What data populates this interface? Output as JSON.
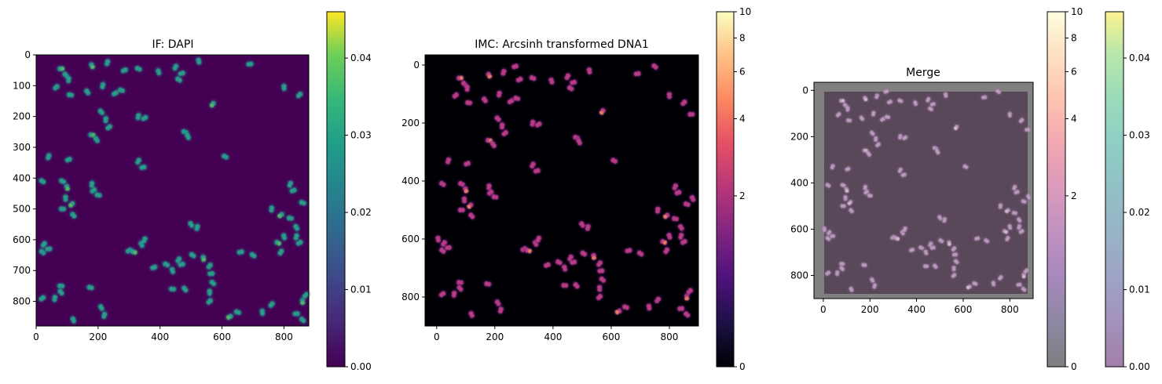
{
  "chart_data": [
    {
      "type": "heatmap",
      "title": "IF: DAPI",
      "colormap": "viridis",
      "xlim": [
        0,
        880
      ],
      "ylim": [
        880,
        0
      ],
      "xticks": [
        0,
        200,
        400,
        600,
        800
      ],
      "yticks": [
        0,
        100,
        200,
        300,
        400,
        500,
        600,
        700,
        800
      ],
      "colorbar": {
        "range": [
          0,
          0.046
        ],
        "ticks": [
          "0.00",
          "0.01",
          "0.02",
          "0.03",
          "0.04"
        ],
        "tick_values": [
          0,
          0.01,
          0.02,
          0.03,
          0.04
        ]
      },
      "background_color": "#440154"
    },
    {
      "type": "heatmap",
      "title": "IMC: Arcsinh transformed DNA1",
      "colormap": "magma",
      "xlim": [
        -40,
        900
      ],
      "ylim": [
        900,
        -35
      ],
      "xticks": [
        0,
        200,
        400,
        600,
        800
      ],
      "yticks": [
        0,
        200,
        400,
        600,
        800
      ],
      "colorbar": {
        "range": [
          0,
          10
        ],
        "scale": "arcsinh",
        "ticks": [
          "0",
          "2",
          "4",
          "6",
          "8",
          "10"
        ],
        "tick_values": [
          0,
          2,
          4,
          6,
          8,
          10
        ]
      },
      "background_color": "#000004"
    },
    {
      "type": "heatmap",
      "title": "Merge",
      "xlim": [
        -40,
        900
      ],
      "ylim": [
        900,
        -35
      ],
      "xticks": [
        0,
        200,
        400,
        600,
        800
      ],
      "yticks": [
        0,
        200,
        400,
        600,
        800
      ],
      "colorbars": [
        {
          "colormap": "magma",
          "alpha": 0.5,
          "range": [
            0,
            10
          ],
          "scale": "arcsinh",
          "ticks": [
            "0",
            "2",
            "4",
            "6",
            "8",
            "10"
          ],
          "tick_values": [
            0,
            2,
            4,
            6,
            8,
            10
          ]
        },
        {
          "colormap": "viridis",
          "alpha": 0.5,
          "range": [
            0,
            0.046
          ],
          "ticks": [
            "0.00",
            "0.01",
            "0.02",
            "0.03",
            "0.04"
          ],
          "tick_values": [
            0,
            0.01,
            0.02,
            0.03,
            0.04
          ]
        }
      ]
    }
  ],
  "nuclei": [
    [
      80,
      45
    ],
    [
      95,
      65
    ],
    [
      105,
      80
    ],
    [
      65,
      105
    ],
    [
      110,
      130
    ],
    [
      165,
      120
    ],
    [
      215,
      100
    ],
    [
      255,
      125
    ],
    [
      275,
      115
    ],
    [
      180,
      35
    ],
    [
      230,
      25
    ],
    [
      285,
      50
    ],
    [
      330,
      45
    ],
    [
      395,
      55
    ],
    [
      450,
      40
    ],
    [
      470,
      60
    ],
    [
      460,
      80
    ],
    [
      525,
      20
    ],
    [
      570,
      160
    ],
    [
      690,
      30
    ],
    [
      750,
      5
    ],
    [
      800,
      105
    ],
    [
      850,
      130
    ],
    [
      875,
      170
    ],
    [
      210,
      185
    ],
    [
      225,
      210
    ],
    [
      235,
      235
    ],
    [
      180,
      260
    ],
    [
      195,
      275
    ],
    [
      330,
      200
    ],
    [
      350,
      205
    ],
    [
      480,
      250
    ],
    [
      490,
      265
    ],
    [
      40,
      330
    ],
    [
      105,
      340
    ],
    [
      85,
      410
    ],
    [
      100,
      430
    ],
    [
      330,
      345
    ],
    [
      345,
      365
    ],
    [
      20,
      410
    ],
    [
      5,
      600
    ],
    [
      25,
      615
    ],
    [
      40,
      630
    ],
    [
      20,
      640
    ],
    [
      95,
      465
    ],
    [
      115,
      485
    ],
    [
      85,
      500
    ],
    [
      120,
      520
    ],
    [
      180,
      420
    ],
    [
      185,
      440
    ],
    [
      200,
      455
    ],
    [
      500,
      550
    ],
    [
      520,
      560
    ],
    [
      300,
      635
    ],
    [
      315,
      640
    ],
    [
      340,
      615
    ],
    [
      350,
      600
    ],
    [
      380,
      690
    ],
    [
      420,
      680
    ],
    [
      440,
      700
    ],
    [
      460,
      665
    ],
    [
      470,
      680
    ],
    [
      505,
      650
    ],
    [
      540,
      660
    ],
    [
      560,
      685
    ],
    [
      565,
      710
    ],
    [
      570,
      740
    ],
    [
      560,
      770
    ],
    [
      560,
      800
    ],
    [
      440,
      760
    ],
    [
      480,
      760
    ],
    [
      760,
      500
    ],
    [
      790,
      520
    ],
    [
      820,
      530
    ],
    [
      840,
      560
    ],
    [
      840,
      590
    ],
    [
      850,
      610
    ],
    [
      860,
      480
    ],
    [
      880,
      460
    ],
    [
      820,
      420
    ],
    [
      830,
      440
    ],
    [
      780,
      610
    ],
    [
      800,
      590
    ],
    [
      790,
      640
    ],
    [
      660,
      640
    ],
    [
      700,
      650
    ],
    [
      730,
      835
    ],
    [
      760,
      810
    ],
    [
      840,
      840
    ],
    [
      860,
      860
    ],
    [
      860,
      800
    ],
    [
      870,
      780
    ],
    [
      80,
      750
    ],
    [
      80,
      770
    ],
    [
      60,
      790
    ],
    [
      20,
      790
    ],
    [
      175,
      755
    ],
    [
      210,
      820
    ],
    [
      220,
      845
    ],
    [
      625,
      850
    ],
    [
      650,
      835
    ],
    [
      120,
      860
    ],
    [
      830,
      900
    ],
    [
      270,
      5
    ],
    [
      610,
      330
    ]
  ]
}
